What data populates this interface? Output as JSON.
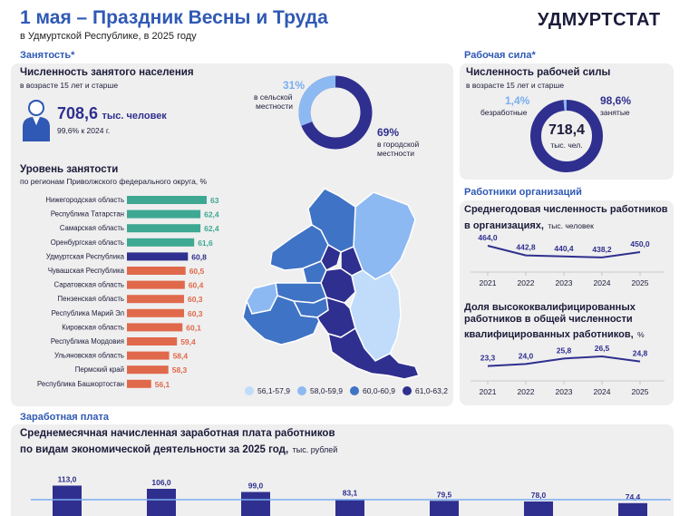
{
  "header": {
    "title": "1 мая – Праздник Весны и Труда",
    "subtitle": "в Удмуртской Республике, в 2025 году",
    "brand": "УДМУРТСТАТ"
  },
  "colors": {
    "accent": "#2f59b5",
    "navy": "#2f2f8f",
    "teal": "#3ea893",
    "orange": "#e0694b",
    "light_blue": "#7aaef0",
    "mid_blue": "#3f73c5",
    "panel": "#efefef"
  },
  "employment": {
    "section_label": "Занятость*",
    "title": "Численность занятого населения",
    "subtitle": "в возрасте 15 лет и старше",
    "value": "708,6",
    "unit": "тыс. человек",
    "note": "99,6% к 2024 г.",
    "icon": "person-icon",
    "rural_pct": "31%",
    "rural_label_1": "в сельской",
    "rural_label_2": "местности",
    "urban_pct": "69%",
    "urban_label_1": "в городской",
    "urban_label_2": "местности",
    "level_title": "Уровень занятости",
    "level_subtitle": "по регионам Приволжского федерального округа, %"
  },
  "labour": {
    "section_label": "Рабочая сила*",
    "title": "Численность рабочей силы",
    "subtitle": "в возрасте 15 лет и старше",
    "unemployed_pct": "1,4%",
    "unemployed_label": "безработные",
    "employed_pct": "98,6%",
    "employed_label": "занятые",
    "total": "718,4",
    "total_unit": "тыс. чел."
  },
  "workers": {
    "section_label": "Работники организаций",
    "chart1_title_1": "Среднегодовая численность работников",
    "chart1_title_2": "в организациях,",
    "chart1_unit": "тыс. человек",
    "chart2_title_1": "Доля высококвалифицированных",
    "chart2_title_2": "работников в общей численности",
    "chart2_title_3": "квалифицированных работников,",
    "chart2_unit": "%"
  },
  "salary": {
    "section_label": "Заработная плата",
    "title_1": "Среднемесячная начисленная заработная плата работников",
    "title_2": "по видам экономической деятельности за 2025 год,",
    "unit": "тыс. рублей"
  },
  "map_legend": [
    "56,1-57,9",
    "58,0-59,9",
    "60,0-60,9",
    "61,0-63,2"
  ],
  "chart_data": [
    {
      "type": "pie",
      "labels": [
        "в сельской местности",
        "в городской местности"
      ],
      "values": [
        31,
        69
      ]
    },
    {
      "type": "pie",
      "labels": [
        "безработные",
        "занятые"
      ],
      "values": [
        1.4,
        98.6
      ]
    },
    {
      "type": "bar",
      "title": "Уровень занятости",
      "categories": [
        "Нижегородская область",
        "Республика Татарстан",
        "Самарская область",
        "Оренбургская область",
        "Удмуртская Республика",
        "Чувашская Республика",
        "Саратовская область",
        "Пензенская область",
        "Республика Марий Эл",
        "Кировская область",
        "Республика Мордовия",
        "Ульяновская область",
        "Пермский край",
        "Республика Башкортостан"
      ],
      "values": [
        63.2,
        62.4,
        62.4,
        61.6,
        60.8,
        60.5,
        60.4,
        60.3,
        60.3,
        60.1,
        59.4,
        58.4,
        58.3,
        56.1
      ],
      "value_labels": [
        "63,2",
        "62,4",
        "62,4",
        "61,6",
        "60,8",
        "60,5",
        "60,4",
        "60,3",
        "60,3",
        "60,1",
        "59,4",
        "58,4",
        "58,3",
        "56,1"
      ]
    },
    {
      "type": "line",
      "title": "Среднегодовая численность работников в организациях",
      "x": [
        "2021",
        "2022",
        "2023",
        "2024",
        "2025"
      ],
      "values": [
        464.0,
        442.8,
        440.4,
        438.2,
        450.0
      ],
      "value_labels": [
        "464,0",
        "442,8",
        "440,4",
        "438,2",
        "450,0"
      ]
    },
    {
      "type": "line",
      "title": "Доля высококвалифицированных работников в общей численности квалифицированных работников",
      "x": [
        "2021",
        "2022",
        "2023",
        "2024",
        "2025"
      ],
      "values": [
        23.3,
        24.0,
        25.8,
        26.5,
        24.8
      ],
      "value_labels": [
        "23,3",
        "24,0",
        "25,8",
        "26,5",
        "24,8"
      ]
    },
    {
      "type": "bar",
      "title": "Среднемесячная начисленная заработная плата работников по видам экономической деятельности за 2025 год",
      "values": [
        113.0,
        106.0,
        99.0,
        83.1,
        79.5,
        78.0,
        74.4
      ],
      "value_labels": [
        "113,0",
        "106,0",
        "99,0",
        "83,1",
        "79,5",
        "78,0",
        "74,4"
      ]
    }
  ]
}
